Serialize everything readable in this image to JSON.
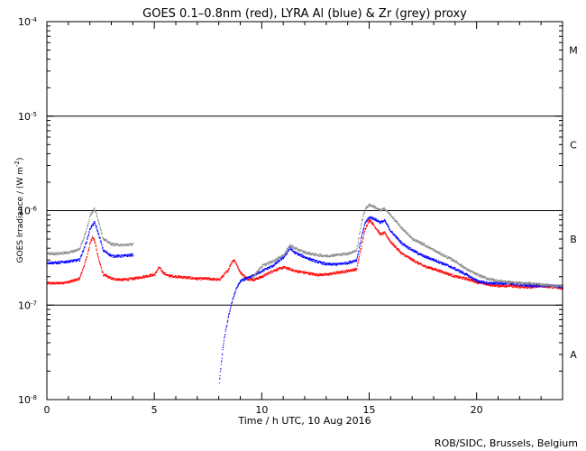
{
  "chart_data": {
    "type": "scatter",
    "title": "GOES 0.1–0.8nm (red), LYRA Al (blue) & Zr (grey) proxy",
    "xlabel": "Time / h UTC, 10 Aug 2016",
    "ylabel_main": "GOES Irradiance / (W m",
    "ylabel_exp": "-2",
    "ylabel_close": ")",
    "credit": "ROB/SIDC, Brussels, Belgium",
    "xlim": [
      0,
      24
    ],
    "ylim": [
      1e-08,
      0.0001
    ],
    "yscale": "log",
    "x_ticks": [
      {
        "value": 0,
        "label": "0"
      },
      {
        "value": 5,
        "label": "5"
      },
      {
        "value": 10,
        "label": "10"
      },
      {
        "value": 15,
        "label": "15"
      },
      {
        "value": 20,
        "label": "20"
      }
    ],
    "y_ticks": [
      {
        "value": 1e-08,
        "base": "10",
        "exp": "-8"
      },
      {
        "value": 1e-07,
        "base": "10",
        "exp": "-7"
      },
      {
        "value": 1e-06,
        "base": "10",
        "exp": "-6"
      },
      {
        "value": 1e-05,
        "base": "10",
        "exp": "-5"
      },
      {
        "value": 0.0001,
        "base": "10",
        "exp": "-4"
      }
    ],
    "flare_class_lines": [
      1e-07,
      1e-06,
      1e-05
    ],
    "flare_classes": [
      {
        "label": "A",
        "value": 3e-08
      },
      {
        "label": "B",
        "value": 5e-07
      },
      {
        "label": "C",
        "value": 5e-06
      },
      {
        "label": "M",
        "value": 5e-05
      }
    ],
    "series": [
      {
        "name": "GOES 0.1-0.8nm",
        "color": "#ff0000",
        "x": [
          0,
          0.5,
          1,
          1.5,
          1.8,
          2,
          2.1,
          2.2,
          2.4,
          2.6,
          3,
          3.5,
          4,
          4.5,
          5,
          5.2,
          5.4,
          5.6,
          6,
          6.5,
          7,
          7.5,
          8,
          8.4,
          8.6,
          8.7,
          8.8,
          9,
          9.3,
          9.6,
          10,
          10.5,
          11,
          11.3,
          11.5,
          12,
          12.5,
          13,
          13.5,
          14,
          14.4,
          14.6,
          14.8,
          15,
          15.2,
          15.5,
          15.7,
          16,
          16.5,
          17,
          17.5,
          18,
          18.5,
          19,
          19.5,
          20,
          20.5,
          21,
          21.5,
          22,
          22.5,
          23,
          23.5,
          24
        ],
        "y": [
          1.7e-07,
          1.7e-07,
          1.75e-07,
          1.9e-07,
          3e-07,
          4.6e-07,
          5.2e-07,
          4.8e-07,
          3e-07,
          2.1e-07,
          1.9e-07,
          1.85e-07,
          1.9e-07,
          2e-07,
          2.1e-07,
          2.5e-07,
          2.2e-07,
          2.05e-07,
          2e-07,
          1.95e-07,
          1.9e-07,
          1.9e-07,
          1.85e-07,
          2.3e-07,
          2.9e-07,
          3e-07,
          2.7e-07,
          2.2e-07,
          1.9e-07,
          1.85e-07,
          2e-07,
          2.3e-07,
          2.5e-07,
          2.4e-07,
          2.3e-07,
          2.2e-07,
          2.1e-07,
          2.1e-07,
          2.2e-07,
          2.3e-07,
          2.4e-07,
          4e-07,
          6.5e-07,
          8e-07,
          7e-07,
          5.6e-07,
          5.8e-07,
          4.6e-07,
          3.5e-07,
          3e-07,
          2.6e-07,
          2.4e-07,
          2.2e-07,
          2e-07,
          1.9e-07,
          1.75e-07,
          1.65e-07,
          1.6e-07,
          1.6e-07,
          1.55e-07,
          1.55e-07,
          1.6e-07,
          1.55e-07,
          1.5e-07
        ]
      },
      {
        "name": "LYRA Al proxy",
        "color": "#0000ff",
        "x": [
          0,
          0.5,
          1,
          1.5,
          1.8,
          2,
          2.2,
          2.4,
          2.6,
          3,
          3.5,
          4,
          8,
          8.2,
          8.4,
          8.6,
          8.8,
          9,
          9.5,
          10,
          10.5,
          11,
          11.3,
          11.5,
          12,
          12.5,
          13,
          13.5,
          14,
          14.4,
          14.6,
          14.8,
          15,
          15.2,
          15.5,
          15.7,
          16,
          16.5,
          17,
          17.5,
          18,
          18.5,
          19,
          19.5,
          20,
          20.5,
          21,
          21.5,
          22,
          22.5,
          23,
          23.5,
          24
        ],
        "y": [
          2.8e-07,
          2.8e-07,
          2.9e-07,
          3e-07,
          4.5e-07,
          6.5e-07,
          7.5e-07,
          5.5e-07,
          3.8e-07,
          3.3e-07,
          3.3e-07,
          3.4e-07,
          1.5e-08,
          4e-08,
          7e-08,
          1.1e-07,
          1.5e-07,
          1.8e-07,
          2e-07,
          2.3e-07,
          2.6e-07,
          3.2e-07,
          4e-07,
          3.6e-07,
          3.2e-07,
          2.9e-07,
          2.7e-07,
          2.7e-07,
          2.8e-07,
          3e-07,
          5e-07,
          7.5e-07,
          8.5e-07,
          8.2e-07,
          7.5e-07,
          7.8e-07,
          6e-07,
          4.5e-07,
          3.8e-07,
          3.3e-07,
          3e-07,
          2.7e-07,
          2.4e-07,
          2.1e-07,
          1.8e-07,
          1.7e-07,
          1.7e-07,
          1.7e-07,
          1.65e-07,
          1.6e-07,
          1.6e-07,
          1.6e-07,
          1.55e-07
        ]
      },
      {
        "name": "LYRA Zr proxy",
        "color": "#8c8c8c",
        "x": [
          0,
          0.5,
          1,
          1.5,
          1.8,
          2,
          2.2,
          2.4,
          2.6,
          3,
          3.5,
          4,
          9.5,
          9.8,
          10,
          10.5,
          11,
          11.3,
          11.5,
          12,
          12.5,
          13,
          13.5,
          14,
          14.4,
          14.6,
          14.8,
          15,
          15.2,
          15.5,
          15.7,
          16,
          16.5,
          17,
          17.5,
          18,
          18.5,
          19,
          19.5,
          20,
          20.5,
          21,
          21.5,
          22,
          22.5,
          23,
          23.5,
          24
        ],
        "y": [
          3.5e-07,
          3.5e-07,
          3.6e-07,
          3.9e-07,
          6e-07,
          9e-07,
          1.05e-06,
          7.5e-07,
          5e-07,
          4.4e-07,
          4.3e-07,
          4.4e-07,
          1.9e-07,
          2.3e-07,
          2.6e-07,
          2.9e-07,
          3.4e-07,
          4.3e-07,
          4e-07,
          3.6e-07,
          3.4e-07,
          3.3e-07,
          3.4e-07,
          3.5e-07,
          3.8e-07,
          7e-07,
          1.05e-06,
          1.15e-06,
          1.1e-06,
          1e-06,
          1.05e-06,
          8.8e-07,
          6.5e-07,
          5e-07,
          4.4e-07,
          3.8e-07,
          3.3e-07,
          2.9e-07,
          2.4e-07,
          2.1e-07,
          1.9e-07,
          1.8e-07,
          1.75e-07,
          1.7e-07,
          1.7e-07,
          1.65e-07,
          1.6e-07,
          1.6e-07
        ]
      }
    ]
  }
}
